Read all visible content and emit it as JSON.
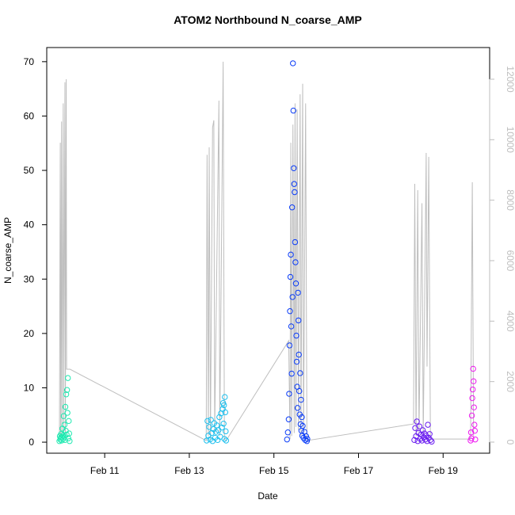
{
  "chart_data": {
    "type": "scatter",
    "title": "ATOM2 Northbound N_coarse_AMP",
    "x_label": "Date",
    "y_label": "N_coarse_AMP",
    "xlim": [
      9.63,
      20.1
    ],
    "xticks": [
      {
        "value": 11,
        "label": "Feb 11"
      },
      {
        "value": 13,
        "label": "Feb 13"
      },
      {
        "value": 15,
        "label": "Feb 15"
      },
      {
        "value": 17,
        "label": "Feb 17"
      },
      {
        "value": 19,
        "label": "Feb 19"
      }
    ],
    "ylim": [
      -2.03,
      72.6
    ],
    "yticks": [
      0,
      10,
      20,
      30,
      40,
      50,
      60,
      70
    ],
    "y2lim": [
      -367,
      13047
    ],
    "y2ticks": [
      0,
      2000,
      4000,
      6000,
      8000,
      10000,
      12000
    ],
    "y2_color": "#bebebe",
    "series": [
      {
        "type": "line",
        "axis": "y2",
        "color": "#bebebe",
        "x": [
          9.93,
          9.95,
          9.96,
          9.98,
          9.99,
          10.02,
          10.03,
          10.06,
          10.07,
          10.09,
          10.1,
          10.18,
          13.4,
          13.42,
          13.45,
          13.47,
          13.5,
          13.55,
          13.58,
          13.6,
          13.7,
          13.72,
          13.8,
          13.83,
          13.87,
          15.35,
          15.38,
          15.4,
          15.42,
          15.45,
          15.48,
          15.5,
          15.52,
          15.55,
          15.58,
          15.62,
          15.64,
          15.68,
          15.7,
          15.75,
          15.78,
          18.3,
          18.33,
          18.36,
          18.4,
          18.43,
          18.5,
          18.53,
          18.6,
          18.62,
          18.66,
          18.7,
          19.65,
          19.69,
          19.72
        ],
        "values": [
          100,
          9900,
          200,
          10600,
          150,
          11200,
          300,
          11900,
          200,
          12000,
          2410,
          2410,
          50,
          9500,
          200,
          9750,
          100,
          10400,
          10640,
          300,
          11290,
          200,
          12580,
          100,
          50,
          3350,
          100,
          9900,
          200,
          10500,
          300,
          11200,
          500,
          11000,
          400,
          11500,
          200,
          11850,
          100,
          11200,
          50,
          600,
          8541,
          200,
          8331,
          300,
          7900,
          200,
          9562,
          2500,
          9431,
          100,
          100,
          8593,
          200
        ]
      },
      {
        "color": "#1de9b0",
        "x": [
          9.93,
          9.94,
          9.95,
          9.96,
          9.97,
          9.98,
          9.99,
          10.0,
          10.01,
          10.02,
          10.03,
          10.04,
          10.05,
          10.06,
          10.07,
          10.08,
          10.09,
          10.1,
          10.11,
          10.12,
          10.13,
          10.14,
          10.15,
          10.16,
          10.17
        ],
        "values": [
          0.2,
          1.1,
          0.5,
          0.8,
          1.5,
          0.3,
          0.9,
          2.5,
          1.2,
          0.6,
          4.8,
          1.0,
          3.2,
          0.4,
          6.5,
          2.1,
          8.8,
          1.4,
          9.6,
          5.4,
          11.8,
          0.7,
          3.9,
          1.6,
          0.2
        ]
      },
      {
        "color": "#1ec0ee",
        "x": [
          13.41,
          13.43,
          13.45,
          13.47,
          13.49,
          13.51,
          13.53,
          13.55,
          13.57,
          13.59,
          13.61,
          13.63,
          13.65,
          13.67,
          13.69,
          13.71,
          13.73,
          13.75,
          13.77,
          13.79,
          13.8,
          13.81,
          13.82,
          13.83,
          13.84,
          13.85,
          13.86,
          13.87
        ],
        "values": [
          0.3,
          3.9,
          1.2,
          2.8,
          0.5,
          4.1,
          1.7,
          0.2,
          2.4,
          3.5,
          0.8,
          1.9,
          3.1,
          0.4,
          2.2,
          4.6,
          1.0,
          5.3,
          2.7,
          6.1,
          7.2,
          3.4,
          6.8,
          0.6,
          8.3,
          5.5,
          2.0,
          0.3
        ]
      },
      {
        "color": "#0a3cf8",
        "x": [
          15.31,
          15.33,
          15.35,
          15.36,
          15.37,
          15.38,
          15.39,
          15.4,
          15.41,
          15.42,
          15.43,
          15.44,
          15.45,
          15.46,
          15.47,
          15.48,
          15.49,
          15.5,
          15.51,
          15.52,
          15.53,
          15.54,
          15.55,
          15.56,
          15.57,
          15.58,
          15.59,
          15.6,
          15.61,
          15.62,
          15.63,
          15.64,
          15.65,
          15.66,
          15.67,
          15.68,
          15.7,
          15.72,
          15.74,
          15.76,
          15.78,
          15.79
        ],
        "values": [
          0.5,
          1.8,
          4.2,
          8.9,
          17.8,
          24.1,
          30.4,
          34.5,
          21.3,
          12.6,
          43.2,
          26.7,
          69.7,
          61.0,
          50.4,
          47.5,
          46.0,
          36.8,
          33.1,
          29.2,
          19.6,
          14.8,
          10.2,
          6.3,
          27.5,
          22.4,
          16.1,
          9.4,
          5.1,
          12.7,
          3.3,
          7.8,
          2.1,
          4.6,
          1.2,
          3.0,
          0.8,
          1.9,
          0.4,
          1.1,
          0.2,
          0.6
        ]
      },
      {
        "color": "#6a1df0",
        "x": [
          18.32,
          18.34,
          18.36,
          18.38,
          18.4,
          18.42,
          18.44,
          18.46,
          18.48,
          18.5,
          18.52,
          18.54,
          18.56,
          18.58,
          18.6,
          18.62,
          18.64,
          18.66,
          18.68,
          18.7,
          18.73
        ],
        "values": [
          0.4,
          2.6,
          1.1,
          3.8,
          0.2,
          1.7,
          2.9,
          0.6,
          1.4,
          0.3,
          2.2,
          0.9,
          1.6,
          0.5,
          1.2,
          0.2,
          3.2,
          0.8,
          1.5,
          0.4,
          0.1
        ]
      },
      {
        "color": "#ee1af0",
        "x": [
          19.65,
          19.66,
          19.67,
          19.68,
          19.69,
          19.7,
          19.71,
          19.72,
          19.73,
          19.74,
          19.75,
          19.76
        ],
        "values": [
          0.3,
          1.8,
          0.7,
          4.9,
          8.1,
          9.7,
          13.5,
          11.2,
          6.4,
          3.2,
          2.1,
          0.5
        ]
      }
    ]
  }
}
